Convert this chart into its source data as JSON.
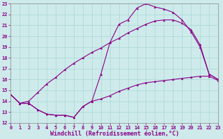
{
  "xlabel": "Windchill (Refroidissement éolien,°C)",
  "xlim": [
    0,
    23
  ],
  "ylim": [
    12,
    23
  ],
  "xticks": [
    0,
    1,
    2,
    3,
    4,
    5,
    6,
    7,
    8,
    9,
    10,
    11,
    12,
    13,
    14,
    15,
    16,
    17,
    18,
    19,
    20,
    21,
    22,
    23
  ],
  "yticks": [
    12,
    13,
    14,
    15,
    16,
    17,
    18,
    19,
    20,
    21,
    22,
    23
  ],
  "background_color": "#ceeaea",
  "line_color": "#880088",
  "line1_x": [
    0,
    1,
    2,
    3,
    4,
    5,
    6,
    7,
    8,
    9,
    10,
    11,
    12,
    13,
    14,
    15,
    16,
    17,
    18,
    19,
    20,
    21,
    22,
    23
  ],
  "line1_y": [
    14.6,
    13.8,
    13.8,
    13.2,
    12.8,
    12.7,
    12.7,
    12.5,
    13.5,
    14.0,
    16.5,
    19.4,
    21.1,
    21.5,
    22.6,
    23.0,
    22.7,
    22.5,
    22.2,
    21.5,
    20.4,
    19.0,
    16.5,
    16.0
  ],
  "line2_x": [
    0,
    1,
    2,
    3,
    4,
    5,
    6,
    7,
    8,
    9,
    10,
    11,
    12,
    13,
    14,
    15,
    16,
    17,
    18,
    19,
    20,
    21,
    22,
    23
  ],
  "line2_y": [
    14.6,
    13.8,
    14.0,
    14.8,
    15.6,
    16.2,
    16.9,
    17.5,
    18.0,
    18.5,
    18.9,
    19.4,
    19.8,
    20.3,
    20.7,
    21.1,
    21.4,
    21.5,
    21.5,
    21.2,
    20.6,
    19.2,
    16.5,
    16.0
  ],
  "line3_x": [
    0,
    1,
    2,
    3,
    4,
    5,
    6,
    7,
    8,
    9,
    10,
    11,
    12,
    13,
    14,
    15,
    16,
    17,
    18,
    19,
    20,
    21,
    22,
    23
  ],
  "line3_y": [
    14.6,
    13.8,
    13.8,
    13.2,
    12.8,
    12.7,
    12.7,
    12.5,
    13.5,
    14.0,
    14.2,
    14.5,
    14.9,
    15.2,
    15.5,
    15.7,
    15.8,
    15.9,
    16.0,
    16.1,
    16.2,
    16.3,
    16.3,
    15.9
  ],
  "tick_fontsize": 5.0,
  "xlabel_fontsize": 6.0,
  "grid_color": "#a8d8d8",
  "linewidth": 0.8,
  "markersize": 2.0
}
